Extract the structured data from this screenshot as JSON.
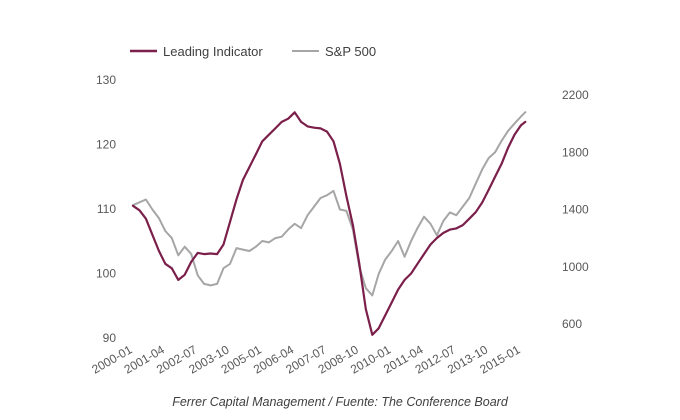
{
  "chart_data": {
    "type": "line",
    "title": "",
    "caption": "Ferrer Capital Management / Fuente: The Conference Board",
    "legend": {
      "placement": "top-left",
      "entries": [
        "Leading Indicator",
        "S&P 500"
      ]
    },
    "x_tick_labels": [
      "2000-01",
      "2001-04",
      "2002-07",
      "2003-10",
      "2005-01",
      "2006-04",
      "2007-07",
      "2008-10",
      "2010-01",
      "2011-04",
      "2012-07",
      "2013-10",
      "2015-01"
    ],
    "x_dates": [
      "2000-01",
      "2000-04",
      "2000-07",
      "2000-10",
      "2001-01",
      "2001-04",
      "2001-07",
      "2001-10",
      "2002-01",
      "2002-04",
      "2002-07",
      "2002-10",
      "2003-01",
      "2003-04",
      "2003-07",
      "2003-10",
      "2004-01",
      "2004-04",
      "2004-07",
      "2004-10",
      "2005-01",
      "2005-04",
      "2005-07",
      "2005-10",
      "2006-01",
      "2006-04",
      "2006-07",
      "2006-10",
      "2007-01",
      "2007-04",
      "2007-07",
      "2007-10",
      "2008-01",
      "2008-04",
      "2008-07",
      "2008-10",
      "2009-01",
      "2009-04",
      "2009-07",
      "2009-10",
      "2010-01",
      "2010-04",
      "2010-07",
      "2010-10",
      "2011-01",
      "2011-04",
      "2011-07",
      "2011-10",
      "2012-01",
      "2012-04",
      "2012-07",
      "2012-10",
      "2013-01",
      "2013-04",
      "2013-07",
      "2013-10",
      "2014-01",
      "2014-04",
      "2014-07",
      "2014-10",
      "2015-01",
      "2015-03"
    ],
    "left_axis": {
      "label": "",
      "ticks": [
        90,
        100,
        110,
        120,
        130
      ],
      "range": [
        90,
        130
      ]
    },
    "right_axis": {
      "label": "",
      "ticks": [
        600,
        1000,
        1400,
        1800,
        2200
      ],
      "range": [
        600,
        2200
      ]
    },
    "grid": false,
    "series": [
      {
        "name": "Leading Indicator",
        "axis": "left",
        "color": "#7b1f4b",
        "values": [
          110.5,
          109.8,
          108.5,
          106.0,
          103.5,
          101.5,
          100.8,
          99.0,
          99.8,
          101.8,
          103.2,
          103.0,
          103.1,
          103.0,
          104.5,
          108.0,
          111.5,
          114.5,
          116.5,
          118.5,
          120.5,
          121.5,
          122.5,
          123.5,
          124.0,
          125.0,
          123.5,
          122.8,
          122.6,
          122.5,
          122.0,
          120.5,
          117.0,
          112.0,
          107.5,
          101.5,
          94.5,
          90.5,
          91.5,
          93.5,
          95.5,
          97.5,
          99.0,
          100.0,
          101.5,
          103.0,
          104.5,
          105.5,
          106.3,
          106.8,
          107.0,
          107.5,
          108.5,
          109.5,
          111.0,
          113.0,
          115.0,
          117.0,
          119.5,
          121.5,
          123.0,
          123.5
        ]
      },
      {
        "name": "S&P 500",
        "axis": "right",
        "color": "#a6a6a6",
        "values": [
          1430,
          1450,
          1470,
          1400,
          1340,
          1250,
          1200,
          1080,
          1140,
          1090,
          940,
          880,
          870,
          880,
          990,
          1020,
          1130,
          1120,
          1110,
          1140,
          1180,
          1170,
          1200,
          1210,
          1260,
          1300,
          1270,
          1360,
          1420,
          1480,
          1500,
          1530,
          1400,
          1390,
          1260,
          1000,
          850,
          800,
          950,
          1050,
          1110,
          1180,
          1070,
          1180,
          1270,
          1350,
          1300,
          1220,
          1320,
          1380,
          1360,
          1420,
          1480,
          1580,
          1680,
          1760,
          1800,
          1880,
          1950,
          2000,
          2050,
          2080
        ]
      }
    ]
  }
}
